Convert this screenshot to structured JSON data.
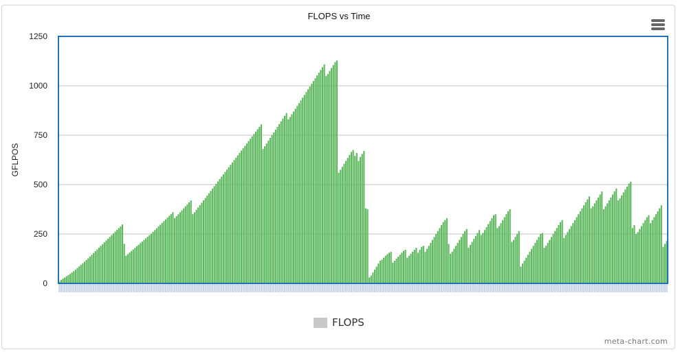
{
  "chart_data": {
    "type": "bar",
    "title": "FLOPS vs Time",
    "ylabel": "GFLPOS",
    "xlabel": "",
    "ylim": [
      0,
      1250
    ],
    "yticks": [
      "0",
      "250",
      "500",
      "750",
      "1000",
      "1250"
    ],
    "grid": true,
    "legend_position": "bottom-center",
    "series": [
      {
        "name": "FLOPS",
        "color": "#5cb85c",
        "values": [
          8,
          18,
          25,
          30,
          36,
          42,
          48,
          55,
          62,
          70,
          78,
          86,
          94,
          102,
          110,
          118,
          127,
          136,
          145,
          154,
          163,
          172,
          181,
          190,
          199,
          208,
          217,
          226,
          235,
          244,
          253,
          262,
          271,
          280,
          289,
          298,
          200,
          140,
          148,
          156,
          164,
          172,
          180,
          188,
          196,
          204,
          212,
          220,
          228,
          236,
          244,
          252,
          261,
          270,
          279,
          288,
          297,
          306,
          315,
          324,
          333,
          342,
          351,
          360,
          330,
          340,
          350,
          360,
          370,
          380,
          390,
          400,
          410,
          420,
          350,
          360,
          372,
          384,
          396,
          408,
          420,
          432,
          444,
          456,
          468,
          480,
          492,
          504,
          516,
          528,
          540,
          552,
          564,
          576,
          588,
          600,
          612,
          624,
          636,
          648,
          660,
          672,
          684,
          696,
          708,
          720,
          732,
          744,
          756,
          768,
          780,
          792,
          804,
          680,
          694,
          708,
          722,
          736,
          750,
          764,
          778,
          792,
          806,
          820,
          834,
          848,
          862,
          830,
          842,
          856,
          870,
          884,
          898,
          912,
          926,
          940,
          954,
          968,
          982,
          996,
          1010,
          1024,
          1038,
          1052,
          1066,
          1080,
          1094,
          1108,
          1050,
          1060,
          1075,
          1090,
          1105,
          1120,
          1128,
          560,
          575,
          590,
          605,
          620,
          635,
          650,
          665,
          675,
          645,
          660,
          620,
          640,
          655,
          670,
          380,
          375,
          30,
          40,
          55,
          70,
          85,
          100,
          115,
          120,
          130,
          140,
          148,
          155,
          160,
          105,
          115,
          125,
          135,
          145,
          155,
          165,
          170,
          130,
          140,
          150,
          160,
          170,
          180,
          155,
          170,
          185,
          190,
          160,
          175,
          190,
          205,
          220,
          235,
          250,
          265,
          280,
          295,
          310,
          320,
          330,
          200,
          150,
          160,
          175,
          190,
          205,
          220,
          235,
          250,
          265,
          275,
          180,
          195,
          210,
          225,
          240,
          255,
          270,
          245,
          255,
          270,
          285,
          300,
          315,
          330,
          345,
          350,
          280,
          290,
          305,
          320,
          335,
          350,
          365,
          375,
          210,
          220,
          235,
          250,
          265,
          85,
          100,
          115,
          130,
          145,
          160,
          175,
          190,
          205,
          220,
          235,
          250,
          255,
          180,
          190,
          205,
          220,
          235,
          250,
          265,
          280,
          295,
          310,
          320,
          230,
          245,
          260,
          275,
          290,
          305,
          320,
          335,
          350,
          365,
          380,
          395,
          410,
          425,
          440,
          380,
          390,
          405,
          420,
          435,
          450,
          465,
          375,
          390,
          405,
          420,
          435,
          450,
          465,
          480,
          420,
          430,
          445,
          460,
          475,
          490,
          505,
          515,
          280,
          295,
          250,
          260,
          275,
          290,
          305,
          320,
          335,
          345,
          305,
          320,
          335,
          350,
          365,
          380,
          395,
          185,
          200,
          215
        ]
      }
    ]
  },
  "legend": {
    "label": "FLOPS",
    "swatch_color": "#c8c8c8"
  },
  "credits": "meta-chart.com",
  "menu": {
    "icon": "hamburger-menu-icon"
  },
  "colors": {
    "plot_border": "#1f72b8",
    "grid": "#c0c0c0",
    "axis_tick_fill": "#c7d3e6"
  }
}
